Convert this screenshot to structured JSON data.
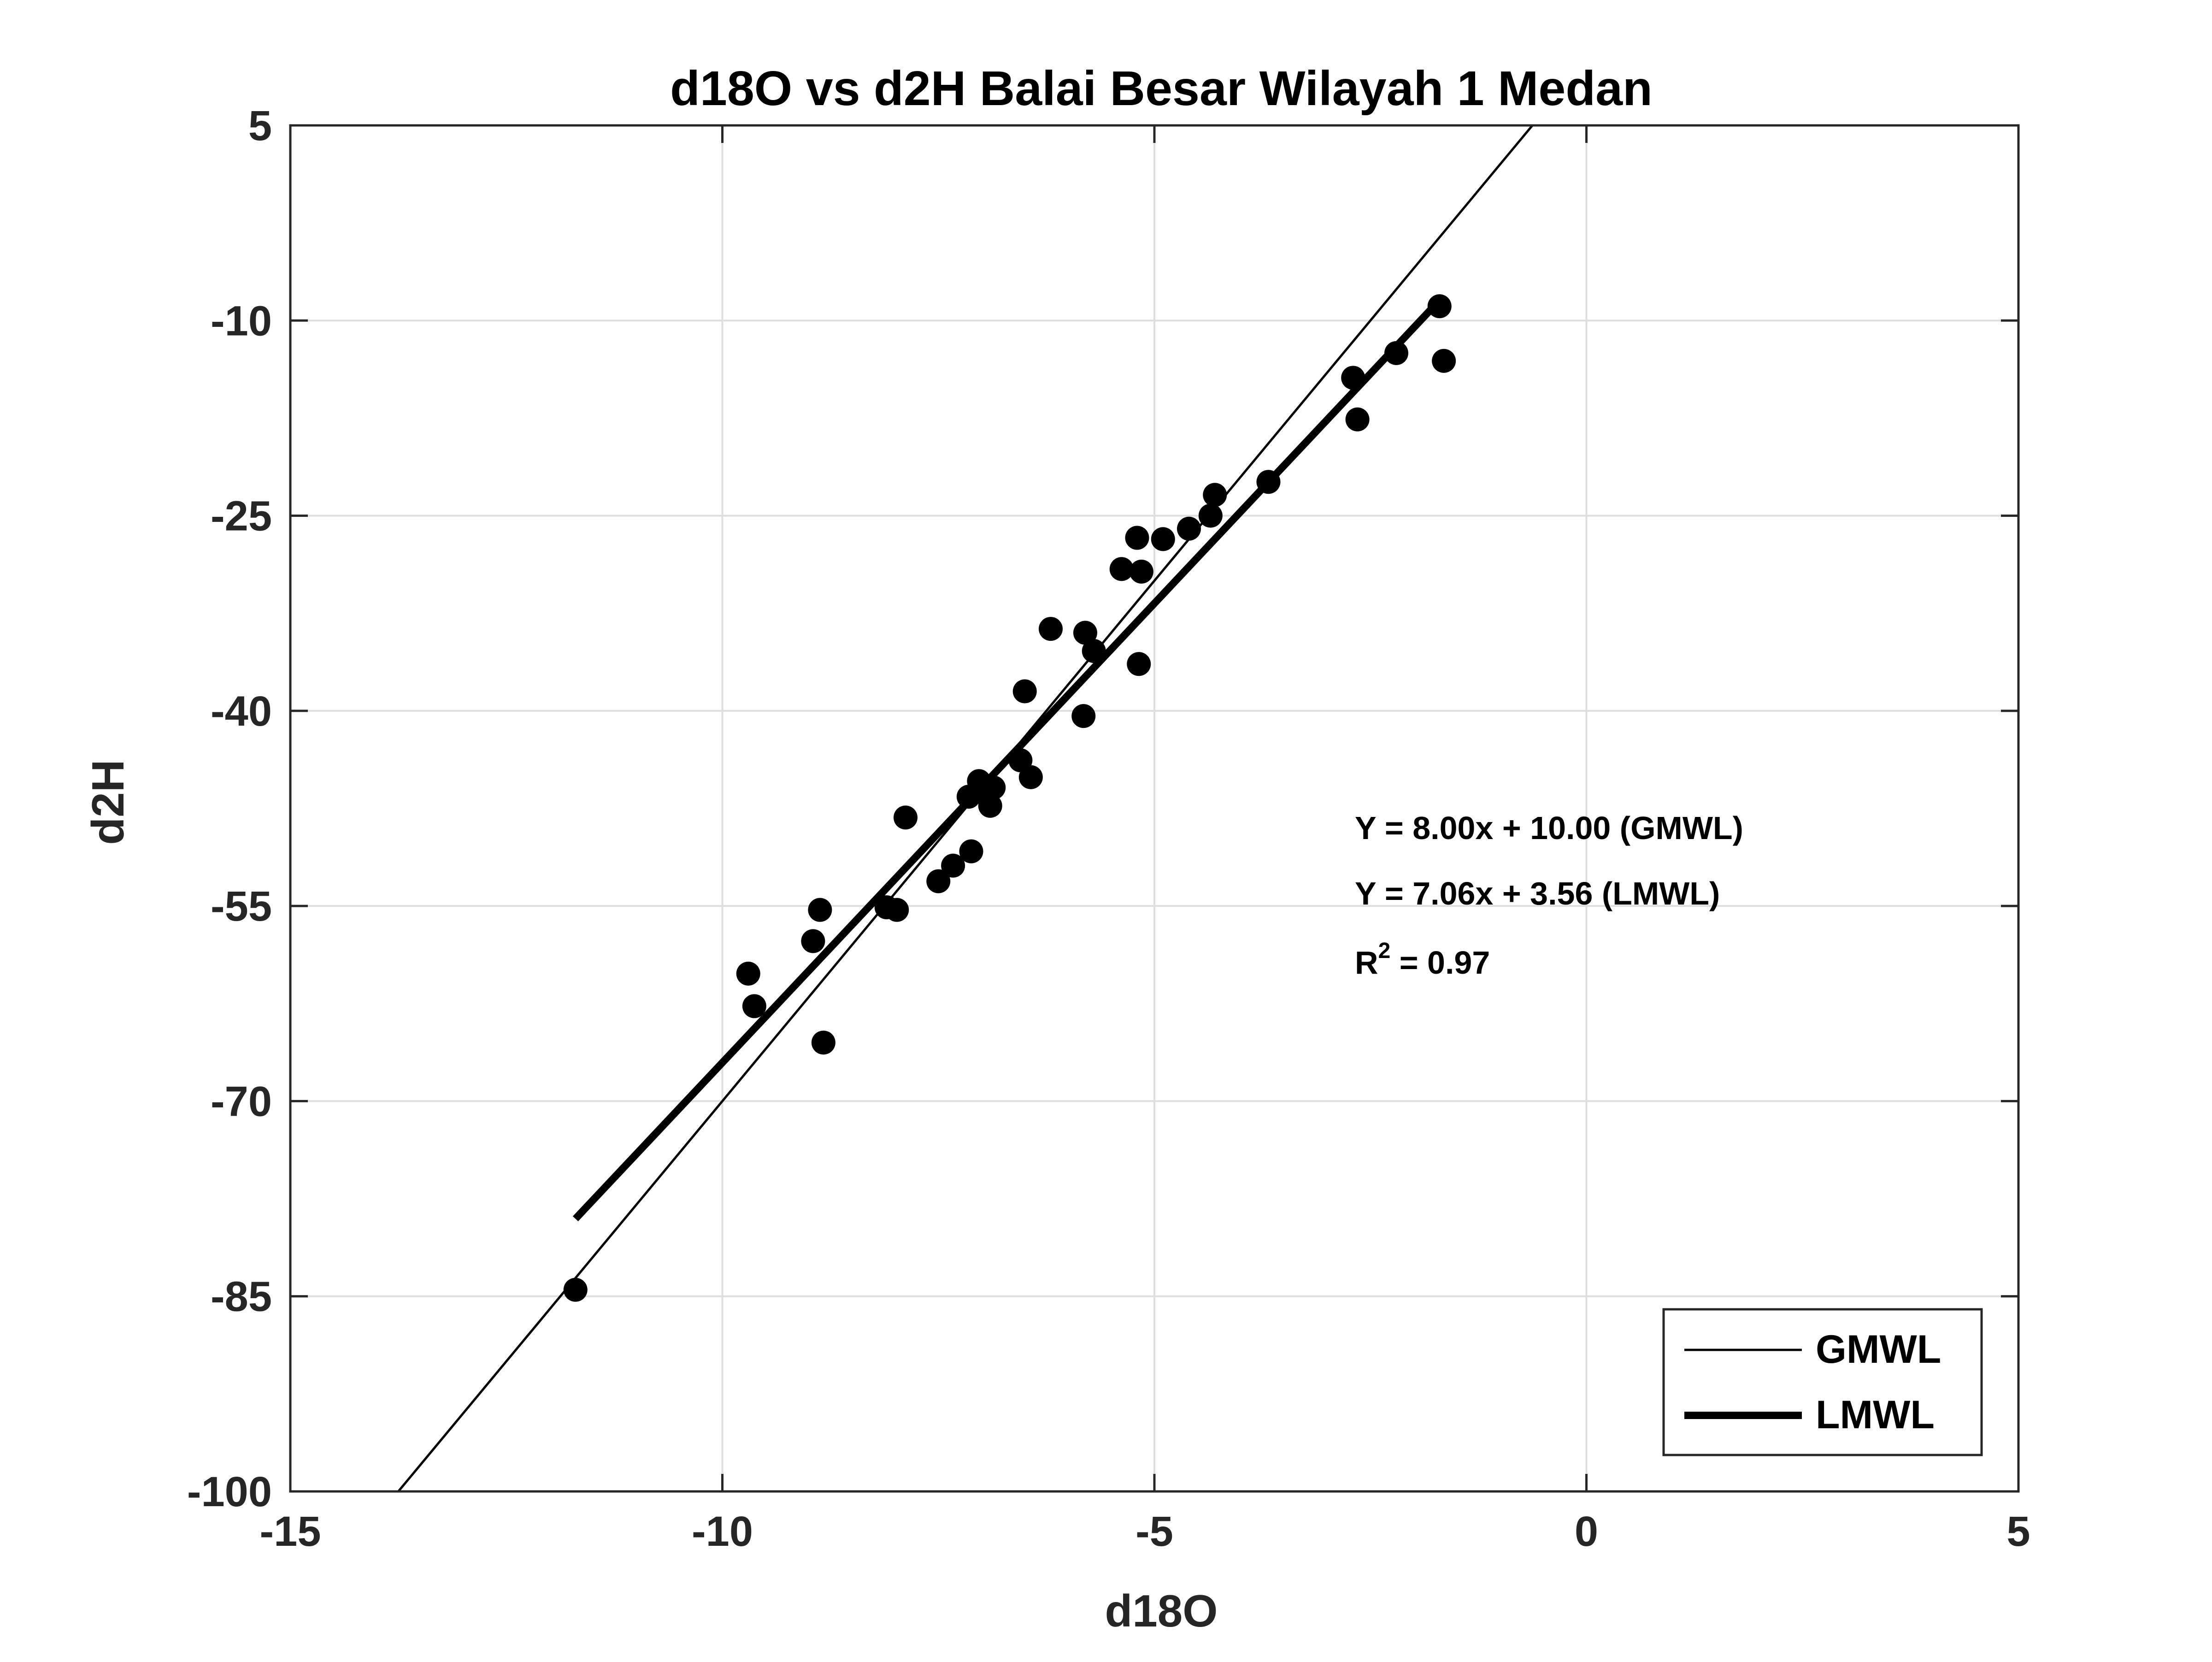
{
  "chart_data": {
    "type": "scatter",
    "title": "d18O vs d2H Balai Besar Wilayah 1 Medan",
    "xlabel": "d18O",
    "ylabel": "d2H",
    "xlim": [
      -15,
      5
    ],
    "ylim": [
      -100,
      5
    ],
    "xticks": [
      -15,
      -10,
      -5,
      0,
      5
    ],
    "xtick_labels": [
      "-15",
      "-10",
      "-5",
      "0",
      "5"
    ],
    "yticks": [
      -100,
      -85,
      -70,
      -55,
      -40,
      -25,
      -10,
      5
    ],
    "ytick_labels": [
      "-100",
      "-85",
      "-70",
      "-55",
      "-40",
      "-25",
      "-10",
      "5"
    ],
    "grid": true,
    "legend_position": "bottom-right",
    "series": [
      {
        "name": "",
        "kind": "scatter",
        "color": "#000000",
        "points": [
          {
            "x": -11.7,
            "y": -84.5
          },
          {
            "x": -9.7,
            "y": -60.2
          },
          {
            "x": -9.63,
            "y": -62.7
          },
          {
            "x": -8.95,
            "y": -57.7
          },
          {
            "x": -8.87,
            "y": -55.3
          },
          {
            "x": -8.83,
            "y": -65.5
          },
          {
            "x": -8.1,
            "y": -55.1
          },
          {
            "x": -7.98,
            "y": -55.3
          },
          {
            "x": -7.88,
            "y": -48.2
          },
          {
            "x": -7.5,
            "y": -53.1
          },
          {
            "x": -7.33,
            "y": -51.9
          },
          {
            "x": -7.15,
            "y": -46.6
          },
          {
            "x": -7.12,
            "y": -50.8
          },
          {
            "x": -7.03,
            "y": -45.4
          },
          {
            "x": -6.95,
            "y": -46.2
          },
          {
            "x": -6.9,
            "y": -47.3
          },
          {
            "x": -6.86,
            "y": -45.9
          },
          {
            "x": -6.55,
            "y": -43.8
          },
          {
            "x": -6.5,
            "y": -38.5
          },
          {
            "x": -6.43,
            "y": -45.1
          },
          {
            "x": -6.2,
            "y": -33.7
          },
          {
            "x": -5.82,
            "y": -40.4
          },
          {
            "x": -5.8,
            "y": -34.0
          },
          {
            "x": -5.7,
            "y": -35.4
          },
          {
            "x": -5.38,
            "y": -29.1
          },
          {
            "x": -5.2,
            "y": -26.7
          },
          {
            "x": -5.18,
            "y": -36.4
          },
          {
            "x": -5.15,
            "y": -29.3
          },
          {
            "x": -4.9,
            "y": -26.8
          },
          {
            "x": -4.6,
            "y": -26.0
          },
          {
            "x": -4.35,
            "y": -25.0
          },
          {
            "x": -4.3,
            "y": -23.4
          },
          {
            "x": -3.68,
            "y": -22.4
          },
          {
            "x": -2.7,
            "y": -14.4
          },
          {
            "x": -2.65,
            "y": -17.6
          },
          {
            "x": -2.2,
            "y": -12.5
          },
          {
            "x": -1.7,
            "y": -8.9
          },
          {
            "x": -1.65,
            "y": -13.1
          }
        ]
      },
      {
        "name": "GMWL",
        "kind": "line",
        "color": "#000000",
        "slope": 8.0,
        "intercept": 10.0,
        "x_range": [
          -13.75,
          -0.625
        ]
      },
      {
        "name": "LMWL",
        "kind": "line",
        "color": "#000000",
        "slope": 7.06,
        "intercept": 3.56,
        "x_range": [
          -11.7,
          -1.8
        ]
      }
    ],
    "annotations": [
      {
        "text": "Y = 8.00x + 10.00 (GMWL)"
      },
      {
        "text": "Y = 7.06x + 3.56 (LMWL)"
      },
      {
        "text_prefix": "R",
        "superscript": "2",
        "text_suffix": " = 0.97"
      }
    ]
  }
}
